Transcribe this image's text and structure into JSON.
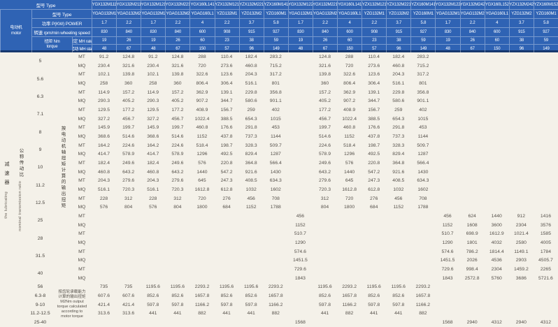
{
  "header": {
    "type_label": "型号  Type",
    "motor_cn": "电动机",
    "motor_en": "motor",
    "type2_label": "型号  Type",
    "power_label": "功率 P(KW)  POWER",
    "speed_label": "转速 rpm/min wheeling speed",
    "torque_label_cn": "扭矩 Nm",
    "torque_label_en": "torque",
    "rated_label": "额定 MH rated",
    "start_label": "起动 MH start",
    "models_x": [
      "YGX132M111",
      "YGX132M211",
      "YGX132M121",
      "YGX132M221",
      "YGX160L141",
      "YZX132M121",
      "YZX132M221",
      "YZX160M141",
      "YGX132M122",
      "YGX132M221",
      "YGX160L141",
      "YZX132M121",
      "YZX132M221",
      "YZX160M141",
      "YGX132M122",
      "YGX132M242",
      "YGX160L152",
      "YZX132M242",
      "YZX160M152"
    ],
    "models_g": [
      "YGAG132M1",
      "YGAG132M2",
      "YGAG132M1",
      "YGAG132M2",
      "YGAG160L1",
      "YZG132M1",
      "YZG132M2",
      "YZG160M1",
      "YGAG132M1",
      "YGAG132M2",
      "YGAG160L1",
      "YZG132M1",
      "YZG132M2",
      "YZG160M1",
      "YGAG132M1",
      "YGAG132M2",
      "YGAG160L1",
      "YZG132M2",
      "YZG160M1"
    ],
    "power": [
      "1.7",
      "2.2",
      "1.7",
      "2.2",
      "4",
      "2.2",
      "3.7",
      "5.8",
      "1.7",
      "2.2",
      "4",
      "2.2",
      "3.7",
      "5.8",
      "1.7",
      "2.2",
      "4",
      "3.7",
      "5.8"
    ],
    "speed": [
      "830",
      "840",
      "830",
      "840",
      "600",
      "908",
      "915",
      "927",
      "830",
      "840",
      "600",
      "908",
      "915",
      "927",
      "830",
      "840",
      "600",
      "915",
      "927"
    ],
    "mh_rated": [
      "19",
      "26",
      "19",
      "26",
      "60",
      "23",
      "38",
      "59",
      "19",
      "26",
      "60",
      "23",
      "38",
      "59",
      "19",
      "26",
      "60",
      "38",
      "59"
    ],
    "mh_start": [
      "48",
      "67",
      "48",
      "67",
      "150",
      "57",
      "96",
      "149",
      "48",
      "67",
      "150",
      "57",
      "96",
      "149",
      "48",
      "67",
      "150",
      "96",
      "149"
    ]
  },
  "left_stub": {
    "reducer_cn": "减速器",
    "reducer_en": "the lubricating",
    "ratio_cn": "公称传动比",
    "ratio_en": "nominal transmission ratio",
    "motor_torque_calc_cn": "按电动机轴扭矩计算的输出扭矩",
    "gear_note_lines": [
      "按齿轮承载能力",
      "计算的输出扭矩",
      "M2Nm output",
      "torque calculated",
      "according to",
      "motor torque"
    ]
  },
  "body": {
    "paired_rows": [
      {
        "ratio": "5",
        "mt": [
          "91.2",
          "124.8",
          "91.2",
          "124.8",
          "288",
          "110.4",
          "182.4",
          "283.2",
          "",
          "124.8",
          "288",
          "110.4",
          "182.4",
          "283.2",
          "",
          "",
          "",
          "",
          ""
        ],
        "mq": [
          "230.4",
          "321.6",
          "230.4",
          "321.6",
          "720",
          "273.6",
          "460.8",
          "715.2",
          "",
          "321.6",
          "720",
          "273.6",
          "460.8",
          "715.2",
          "",
          "",
          "",
          "",
          ""
        ]
      },
      {
        "ratio": "5.6",
        "mt": [
          "102.1",
          "139.8",
          "102.1",
          "139.8",
          "322.6",
          "123.6",
          "204.3",
          "317.2",
          "",
          "139.8",
          "322.6",
          "123.6",
          "204.3",
          "317.2",
          "",
          "",
          "",
          "",
          ""
        ],
        "mq": [
          "258",
          "360",
          "258",
          "360",
          "806.4",
          "306.4",
          "516.1",
          "801",
          "",
          "360",
          "806.4",
          "306.4",
          "516.1",
          "801",
          "",
          "",
          "",
          "",
          ""
        ]
      },
      {
        "ratio": "6.3",
        "mt": [
          "114.9",
          "157.2",
          "114.9",
          "157.2",
          "362.9",
          "139.1",
          "229.8",
          "356.8",
          "",
          "157.2",
          "362.9",
          "139.1",
          "229.8",
          "356.8",
          "",
          "",
          "",
          "",
          ""
        ],
        "mq": [
          "290.3",
          "405.2",
          "290.3",
          "405.2",
          "907.2",
          "344.7",
          "580.6",
          "901.1",
          "",
          "405.2",
          "907.2",
          "344.7",
          "580.6",
          "901.1",
          "",
          "",
          "",
          "",
          ""
        ]
      },
      {
        "ratio": "7.1",
        "mt": [
          "129.5",
          "177.2",
          "129.5",
          "177.2",
          "408.9",
          "156.7",
          "259",
          "402",
          "",
          "177.2",
          "408.9",
          "156.7",
          "259",
          "402",
          "",
          "",
          "",
          "",
          ""
        ],
        "mq": [
          "327.2",
          "456.7",
          "327.2",
          "456.7",
          "1022.4",
          "388.5",
          "654.3",
          "1015",
          "",
          "456.7",
          "1022.4",
          "388.5",
          "654.3",
          "1015",
          "",
          "",
          "",
          "",
          ""
        ]
      },
      {
        "ratio": "8",
        "mt": [
          "145.9",
          "199.7",
          "145.9",
          "199.7",
          "460.8",
          "176.6",
          "291.8",
          "453",
          "",
          "199.7",
          "460.8",
          "176.6",
          "291.8",
          "453",
          "",
          "",
          "",
          "",
          ""
        ],
        "mq": [
          "368.6",
          "514.6",
          "368.6",
          "514.6",
          "1152",
          "437.8",
          "737.3",
          "1144",
          "",
          "514.6",
          "1152",
          "437.8",
          "737.3",
          "1144",
          "",
          "",
          "",
          "",
          ""
        ]
      },
      {
        "ratio": "9",
        "mt": [
          "164.2",
          "224.6",
          "164.2",
          "224.6",
          "518.4",
          "198.7",
          "328.3",
          "509.7",
          "",
          "224.6",
          "518.4",
          "198.7",
          "328.3",
          "509.7",
          "",
          "",
          "",
          "",
          ""
        ],
        "mq": [
          "414.7",
          "578.9",
          "414.7",
          "578.9",
          "1296",
          "492.5",
          "829.4",
          "1287",
          "",
          "578.9",
          "1296",
          "492.5",
          "829.4",
          "1287",
          "",
          "",
          "",
          "",
          ""
        ]
      },
      {
        "ratio": "10",
        "mt": [
          "182.4",
          "249.6",
          "182.4",
          "249.6",
          "576",
          "220.8",
          "364.8",
          "566.4",
          "",
          "249.6",
          "576",
          "220.8",
          "364.8",
          "566.4",
          "",
          "",
          "",
          "",
          ""
        ],
        "mq": [
          "460.8",
          "643.2",
          "460.8",
          "643.2",
          "1440",
          "547.2",
          "921.6",
          "1430",
          "",
          "643.2",
          "1440",
          "547.2",
          "921.6",
          "1430",
          "",
          "",
          "",
          "",
          ""
        ]
      },
      {
        "ratio": "11.2",
        "mt": [
          "204.3",
          "279.6",
          "204.3",
          "279.6",
          "645",
          "247.3",
          "408.5",
          "634.3",
          "",
          "279.6",
          "645",
          "247.3",
          "408.5",
          "634.3",
          "",
          "",
          "",
          "",
          ""
        ],
        "mq": [
          "516.1",
          "720.3",
          "516.1",
          "720.3",
          "1612.8",
          "612.8",
          "1032",
          "1602",
          "",
          "720.3",
          "1612.8",
          "612.8",
          "1032",
          "1602",
          "",
          "",
          "",
          "",
          ""
        ]
      },
      {
        "ratio": "12.5",
        "mt": [
          "228",
          "312",
          "228",
          "312",
          "720",
          "276",
          "456",
          "708",
          "",
          "312",
          "720",
          "276",
          "456",
          "708",
          "",
          "",
          "",
          "",
          ""
        ],
        "mq": [
          "576",
          "804",
          "576",
          "804",
          "1800",
          "684",
          "1152",
          "1788",
          "",
          "804",
          "1800",
          "684",
          "1152",
          "1788",
          "",
          "",
          "",
          "",
          ""
        ]
      },
      {
        "ratio": "25",
        "mt": [
          "",
          "",
          "",
          "",
          "",
          "",
          "",
          "",
          "456",
          "",
          "",
          "",
          "",
          "",
          "456",
          "624",
          "1440",
          "912",
          "1416"
        ],
        "mq": [
          "",
          "",
          "",
          "",
          "",
          "",
          "",
          "",
          "1152",
          "",
          "",
          "",
          "",
          "",
          "1152",
          "1608",
          "3600",
          "2304",
          "3576"
        ]
      },
      {
        "ratio": "28",
        "mt": [
          "",
          "",
          "",
          "",
          "",
          "",
          "",
          "",
          "510.7",
          "",
          "",
          "",
          "",
          "",
          "510.7",
          "698.9",
          "1612.9",
          "1021.4",
          "1585"
        ],
        "mq": [
          "",
          "",
          "",
          "",
          "",
          "",
          "",
          "",
          "1290",
          "",
          "",
          "",
          "",
          "",
          "1290",
          "1801",
          "4032",
          "2580",
          "4005"
        ]
      },
      {
        "ratio": "31.5",
        "mt": [
          "",
          "",
          "",
          "",
          "",
          "",
          "",
          "",
          "574.6",
          "",
          "",
          "",
          "",
          "",
          "574.6",
          "786.2",
          "1814.4",
          "1149.1",
          "1784"
        ],
        "mq": [
          "",
          "",
          "",
          "",
          "",
          "",
          "",
          "",
          "1451.5",
          "",
          "",
          "",
          "",
          "",
          "1451.5",
          "2026",
          "4536",
          "2903",
          "4505.7"
        ]
      },
      {
        "ratio": "40",
        "mt": [
          "",
          "",
          "",
          "",
          "",
          "",
          "",
          "",
          "729.6",
          "",
          "",
          "",
          "",
          "",
          "729.6",
          "998.4",
          "2304",
          "1459.2",
          "2265"
        ],
        "mq": [
          "",
          "",
          "",
          "",
          "",
          "",
          "",
          "",
          "1843",
          "",
          "",
          "",
          "",
          "",
          "1843",
          "2572.8",
          "5760",
          "3686",
          "5721.6"
        ]
      }
    ],
    "single_rows": [
      {
        "ratio": "56",
        "values": [
          "735",
          "735",
          "1195.6",
          "1195.6",
          "2293.2",
          "1195.6",
          "1195.6",
          "2293.2",
          "",
          "1195.6",
          "2293.2",
          "1195.6",
          "1195.6",
          "2293.2",
          "",
          "",
          "",
          "",
          ""
        ]
      },
      {
        "ratio": "6.3-8",
        "values": [
          "607.6",
          "607.6",
          "852.6",
          "852.6",
          "1657.8",
          "852.6",
          "852.6",
          "1657.8",
          "",
          "852.6",
          "1657.8",
          "852.6",
          "852.6",
          "1657.8",
          "",
          "",
          "",
          "",
          ""
        ]
      },
      {
        "ratio": "9-10",
        "values": [
          "421.4",
          "421.4",
          "597.8",
          "597.8",
          "1166.2",
          "597.8",
          "597.8",
          "1166.2",
          "",
          "597.8",
          "1166.2",
          "597.8",
          "597.8",
          "1166.2",
          "",
          "",
          "",
          "",
          ""
        ]
      },
      {
        "ratio": "11.2-12.5",
        "values": [
          "313.6",
          "313.6",
          "441",
          "441",
          "882",
          "441",
          "441",
          "882",
          "",
          "441",
          "882",
          "441",
          "441",
          "882",
          "",
          "",
          "",
          "",
          ""
        ]
      },
      {
        "ratio": "25-40",
        "values": [
          "",
          "",
          "",
          "",
          "",
          "",
          "",
          "",
          "1568",
          "",
          "",
          "",
          "",
          "",
          "1568",
          "2940",
          "4312",
          "2940",
          "4312"
        ]
      }
    ]
  },
  "colors": {
    "header_blue": "#2f63b4",
    "header_border": "#17386e",
    "body_bg": "#f4f1e9"
  }
}
